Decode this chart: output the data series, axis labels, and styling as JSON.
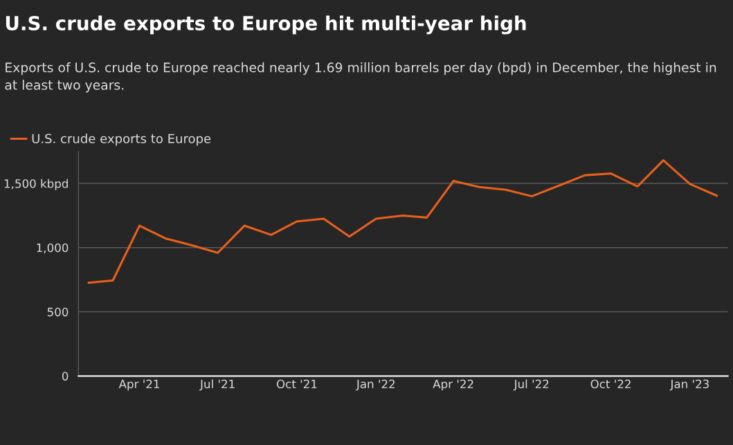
{
  "chart_data": {
    "type": "line",
    "title": "U.S. crude exports to Europe hit multi-year high",
    "subtitle": "Exports of U.S. crude to Europe reached nearly 1.69 million barrels per day (bpd) in December, the highest in at least two years.",
    "x": [
      "2021-02",
      "2021-03",
      "2021-04",
      "2021-05",
      "2021-06",
      "2021-07",
      "2021-08",
      "2021-09",
      "2021-10",
      "2021-11",
      "2021-12",
      "2022-01",
      "2022-02",
      "2022-03",
      "2022-04",
      "2022-05",
      "2022-06",
      "2022-07",
      "2022-08",
      "2022-09",
      "2022-10",
      "2022-11",
      "2022-12",
      "2023-01",
      "2023-02"
    ],
    "series": [
      {
        "name": "U.S. crude exports to Europe",
        "color": "#e8601c",
        "values": [
          726,
          744,
          1171,
          1072,
          1018,
          960,
          1171,
          1099,
          1204,
          1225,
          1086,
          1225,
          1249,
          1234,
          1519,
          1472,
          1450,
          1400,
          1481,
          1564,
          1577,
          1477,
          1680,
          1495,
          1405
        ]
      }
    ],
    "xlim": [
      "2021-01-20",
      "2023-02-14"
    ],
    "xticks": [
      {
        "value": "2021-04",
        "label": "Apr '21"
      },
      {
        "value": "2021-07",
        "label": "Jul '21"
      },
      {
        "value": "2021-10",
        "label": "Oct '21"
      },
      {
        "value": "2022-01",
        "label": "Jan '22"
      },
      {
        "value": "2022-04",
        "label": "Apr '22"
      },
      {
        "value": "2022-07",
        "label": "Jul '22"
      },
      {
        "value": "2022-10",
        "label": "Oct '22"
      },
      {
        "value": "2023-01",
        "label": "Jan '23"
      }
    ],
    "ylim": [
      0,
      1750
    ],
    "yticks": [
      0,
      500,
      {
        "value": 1000,
        "label": "1,000"
      },
      {
        "value": 1500,
        "label": "1,500 kbpd"
      }
    ],
    "grid": "y",
    "legend": "top left",
    "marker": "none",
    "line_style": "solid"
  }
}
